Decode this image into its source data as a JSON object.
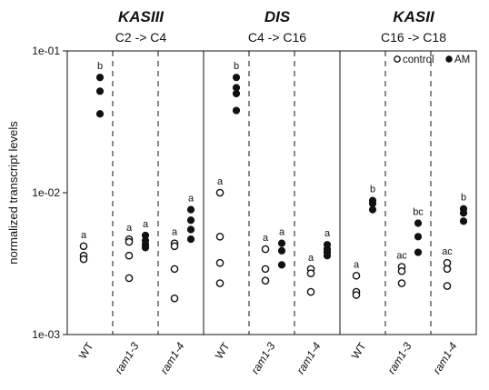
{
  "chart_data": {
    "type": "scatter",
    "ylabel": "normalized transcript levels",
    "yscale": "log",
    "ylim": [
      0.001,
      0.1
    ],
    "yticks": [
      {
        "value": 0.1,
        "label": "1e-01"
      },
      {
        "value": 0.01,
        "label": "1e-02"
      },
      {
        "value": 0.001,
        "label": "1e-03"
      }
    ],
    "legend": {
      "placement": "top-right",
      "entries": [
        {
          "name": "control",
          "marker": "open-circle"
        },
        {
          "name": "AM",
          "marker": "filled-circle"
        }
      ]
    },
    "panels": [
      {
        "gene": "KASIII",
        "reaction": "C2 -> C4",
        "groups": [
          {
            "genotype": "WT",
            "control": [
              0.0042,
              0.0036,
              0.0034
            ],
            "control_label": "a",
            "AM": [
              0.065,
              0.052,
              0.036
            ],
            "AM_label": "b"
          },
          {
            "genotype": "ram1-3",
            "control": [
              0.0047,
              0.0045,
              0.0036,
              0.0025
            ],
            "control_label": "a",
            "AM": [
              0.005,
              0.0046,
              0.0043,
              0.0041
            ],
            "AM_label": "a"
          },
          {
            "genotype": "ram1-4",
            "control": [
              0.0044,
              0.0042,
              0.0029,
              0.0018
            ],
            "control_label": "a",
            "AM": [
              0.0076,
              0.0064,
              0.0055,
              0.0047
            ],
            "AM_label": "a"
          }
        ]
      },
      {
        "gene": "DIS",
        "reaction": "C4 -> C16",
        "groups": [
          {
            "genotype": "WT",
            "control": [
              0.01,
              0.0049,
              0.0032,
              0.0023
            ],
            "control_label": "a",
            "AM": [
              0.065,
              0.055,
              0.05,
              0.038
            ],
            "AM_label": "b"
          },
          {
            "genotype": "ram1-3",
            "control": [
              0.004,
              0.0029,
              0.0024
            ],
            "control_label": "a",
            "AM": [
              0.0044,
              0.0039,
              0.0031
            ],
            "AM_label": "a"
          },
          {
            "genotype": "ram1-4",
            "control": [
              0.0029,
              0.0027,
              0.002
            ],
            "control_label": "a",
            "AM": [
              0.0043,
              0.004,
              0.0038,
              0.0036
            ],
            "AM_label": "a"
          }
        ]
      },
      {
        "gene": "KASII",
        "reaction": "C16 -> C18",
        "groups": [
          {
            "genotype": "WT",
            "control": [
              0.0026,
              0.002,
              0.0019
            ],
            "control_label": "a",
            "AM": [
              0.0088,
              0.0084,
              0.0076
            ],
            "AM_label": "b"
          },
          {
            "genotype": "ram1-3",
            "control": [
              0.003,
              0.0028,
              0.0023
            ],
            "control_label": "ac",
            "AM": [
              0.0061,
              0.0049,
              0.0038
            ],
            "AM_label": "bc"
          },
          {
            "genotype": "ram1-4",
            "control": [
              0.0032,
              0.0029,
              0.0022
            ],
            "control_label": "ac",
            "AM": [
              0.0077,
              0.0072,
              0.0063
            ],
            "AM_label": "b"
          }
        ]
      }
    ]
  }
}
